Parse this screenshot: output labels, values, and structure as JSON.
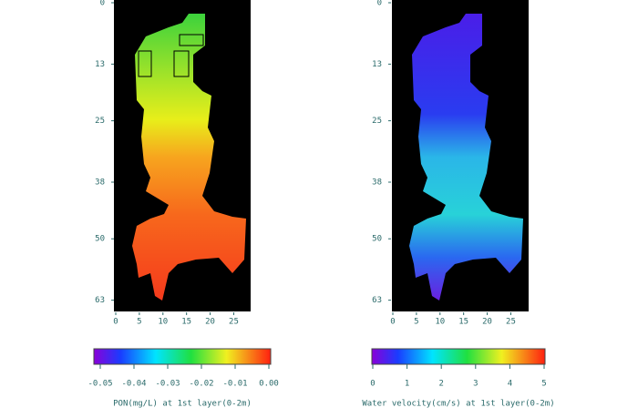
{
  "panels": [
    {
      "xlim": [
        0,
        28
      ],
      "ylim": [
        0,
        65
      ],
      "xticks": [
        0,
        5,
        10,
        15,
        20,
        25
      ],
      "yticks": [
        0,
        13,
        25,
        38,
        50,
        63
      ],
      "colorbar": {
        "lim": [
          -0.05,
          0
        ],
        "ticks": [
          -0.05,
          -0.04,
          -0.03,
          -0.02,
          -0.01,
          {
            "value": 0,
            "label": "0.00"
          }
        ],
        "label": "PON(mg/L) at 1st layer(0-2m)"
      }
    },
    {
      "xlim": [
        0,
        28
      ],
      "ylim": [
        0,
        65
      ],
      "xticks": [
        0,
        5,
        10,
        15,
        20,
        25
      ],
      "yticks": [
        0,
        13,
        25,
        38,
        50,
        63
      ],
      "colorbar": {
        "lim": [
          0,
          5
        ],
        "ticks": [
          0,
          1,
          2,
          3,
          4,
          5
        ],
        "label": "Water velocity(cm/s) at 1st layer(0-2m)"
      }
    }
  ]
}
